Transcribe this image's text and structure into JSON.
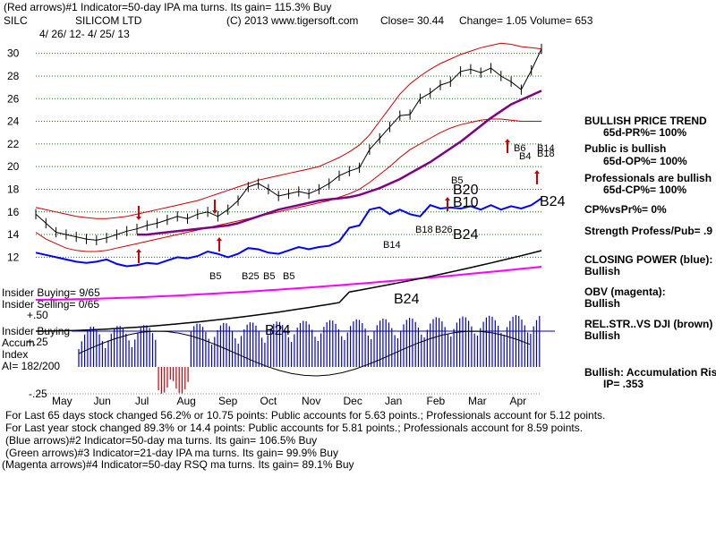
{
  "header": {
    "line1": "(Red arrows)#1 Indicator=50-day IPA ma turns. Its gain= 115.3% Buy",
    "ticker": "SILC",
    "company": "SILICOM LTD",
    "copyright": "(C) 2013 www.tigersoft.com",
    "close": "Close=  30.44",
    "change": "Change= 1.05",
    "volume": "Volume= 653",
    "date_range": "4/ 26/ 12-  4/ 25/ 13"
  },
  "right_panel": {
    "trend_title": "BULLISH PRICE TREND",
    "pr": "65d-PR%= 100%",
    "public_title": "Public is bullish",
    "op": "65d-OP%= 100%",
    "prof_title": "Professionals are bullish",
    "cp": "65d-CP%= 100%",
    "cpvspr": "CP%vsPr%=  0%",
    "strength": "Strength Profess/Pub= .9",
    "closing_power": "CLOSING POWER (blue):",
    "closing_power_val": "Bullish",
    "obv": "OBV (magenta):",
    "obv_val": "Bullish",
    "relstr": "REL.STR..VS DJI (brown)",
    "relstr_val": "Bullish",
    "accum": "Bullish: Accumulation Rising",
    "ip": "IP=   .353"
  },
  "left_labels": {
    "insider_buying": "Insider Buying= 9/65",
    "insider_selling": "Insider Selling= 0/65",
    "plus50": "+.50",
    "insider_buying2": "Insider Buying",
    "accum": "Accum",
    "plus25": "+.25",
    "index": "Index",
    "ai": "AI= 182/200",
    "minus25": "-.25"
  },
  "chart_annotations": {
    "B5_a": "B5",
    "B25": "B25",
    "B5_b": "B5",
    "B5_c": "B5",
    "B24_ai": "B24",
    "B24_lower": "B24",
    "B14": "B14",
    "B18": "B18",
    "B26": "B26",
    "B24_mid": "B24",
    "B10": "B10",
    "B20": "B20",
    "B5_feb": "B5",
    "B24_right": "B24",
    "B6": "B6",
    "B4": "B4",
    "B14_right": "B14",
    "B18_right": "B18"
  },
  "footer": {
    "line1": "For Last 65 days stock changed  56.2% or  10.75 points:  Public accounts for  5.63 points.;  Professionals account for  5.12 points.",
    "line2": "For Last year stock changed  89.3% or  14.4 points:  Public accounts for  5.81 points.;  Professionals account for  8.59 points.",
    "line3": "(Blue arrows)#2 Indicator=50-day ma turns. Its gain= 106.5% Buy",
    "line4": "(Green arrows)#3 Indicator=21-day IPA ma turns. Its gain= 99.9% Buy",
    "line5": "(Magenta arrows)#4 Indicator=50-day RSQ ma turns. Its gain= 89.1% Buy"
  },
  "colors": {
    "price": "#000000",
    "band": "#cc0000",
    "ma50": "#800080",
    "closing_power": "#0000ff",
    "obv": "#ff00ff",
    "relstr": "#8b4513",
    "accum_pos": "#0000cc",
    "accum_neg": "#cc0000",
    "grid": "#008000"
  },
  "chart_data": {
    "type": "line",
    "title": "SILC - SILICOM LTD",
    "x_labels": [
      "May",
      "Jun",
      "Jul",
      "Aug",
      "Sep",
      "Oct",
      "Nov",
      "Dec",
      "Jan",
      "Feb",
      "Mar",
      "Apr"
    ],
    "ylim": [
      11,
      31
    ],
    "y_ticks": [
      12,
      14,
      16,
      18,
      20,
      22,
      24,
      26,
      28,
      30
    ],
    "x": [
      0,
      1,
      2,
      3,
      4,
      5,
      6,
      7,
      8,
      9,
      10,
      11,
      12,
      13,
      14,
      15,
      16,
      17,
      18,
      19,
      20,
      21,
      22,
      23,
      24,
      25,
      26,
      27,
      28,
      29,
      30,
      31,
      32,
      33,
      34,
      35,
      36,
      37,
      38,
      39,
      40,
      41,
      42,
      43,
      44,
      45,
      46,
      47,
      48,
      49,
      50
    ],
    "series": [
      {
        "name": "Price",
        "values": [
          15.8,
          15.0,
          14.2,
          14.0,
          13.8,
          13.6,
          13.5,
          13.7,
          14.0,
          14.3,
          14.5,
          14.8,
          15.0,
          15.3,
          15.6,
          15.4,
          15.8,
          16.0,
          15.6,
          16.2,
          17.0,
          18.2,
          18.5,
          18.0,
          17.4,
          17.6,
          17.8,
          17.6,
          18.0,
          18.5,
          19.2,
          19.6,
          19.9,
          21.5,
          22.5,
          23.5,
          24.5,
          24.6,
          26.0,
          26.5,
          27.2,
          27.5,
          28.4,
          28.6,
          28.3,
          28.7,
          28.0,
          27.5,
          26.8,
          28.5,
          30.4
        ]
      },
      {
        "name": "Upper band",
        "values": [
          16.4,
          16.2,
          16.0,
          15.8,
          15.6,
          15.5,
          15.4,
          15.4,
          15.5,
          15.6,
          15.8,
          16.0,
          16.2,
          16.4,
          16.6,
          16.8,
          17.0,
          17.3,
          17.6,
          17.9,
          18.2,
          18.5,
          18.8,
          19.0,
          19.2,
          19.4,
          19.6,
          19.8,
          20.0,
          20.4,
          20.8,
          21.3,
          21.9,
          22.8,
          24.0,
          25.2,
          26.4,
          27.3,
          28.0,
          28.6,
          29.1,
          29.5,
          29.9,
          30.2,
          30.5,
          30.7,
          30.9,
          30.8,
          30.6,
          30.5,
          30.4
        ]
      },
      {
        "name": "Lower band",
        "values": [
          14.2,
          13.6,
          13.2,
          12.8,
          12.6,
          12.5,
          12.5,
          12.6,
          12.8,
          13.0,
          13.2,
          13.4,
          13.6,
          13.8,
          14.0,
          14.2,
          14.4,
          14.6,
          14.8,
          15.0,
          15.2,
          15.4,
          15.6,
          15.8,
          16.0,
          16.2,
          16.4,
          16.6,
          16.8,
          17.0,
          17.3,
          17.6,
          18.0,
          18.6,
          19.3,
          20.0,
          20.8,
          21.5,
          22.0,
          22.5,
          23.0,
          23.4,
          23.7,
          23.9,
          24.1,
          24.2,
          24.2,
          24.1,
          24.0,
          24.0,
          24.0
        ]
      },
      {
        "name": "50-day MA",
        "values": [
          null,
          null,
          null,
          null,
          null,
          null,
          null,
          null,
          null,
          null,
          14.0,
          14.0,
          14.1,
          14.2,
          14.3,
          14.4,
          14.5,
          14.6,
          14.7,
          14.8,
          15.0,
          15.3,
          15.6,
          15.9,
          16.2,
          16.4,
          16.6,
          16.8,
          17.0,
          17.1,
          17.2,
          17.3,
          17.5,
          17.8,
          18.1,
          18.5,
          18.9,
          19.4,
          19.9,
          20.4,
          21.0,
          21.6,
          22.2,
          22.9,
          23.6,
          24.3,
          24.9,
          25.5,
          25.9,
          26.3,
          26.7
        ]
      },
      {
        "name": "Closing Power (blue)",
        "values": [
          12.4,
          12.2,
          12.0,
          11.8,
          11.6,
          11.5,
          11.6,
          11.8,
          11.4,
          11.2,
          11.3,
          11.5,
          11.4,
          11.7,
          12.0,
          11.9,
          12.1,
          12.5,
          12.3,
          12.0,
          12.3,
          12.8,
          12.7,
          12.4,
          12.3,
          12.6,
          12.9,
          12.7,
          12.9,
          13.0,
          13.4,
          14.6,
          14.8,
          16.2,
          16.4,
          15.8,
          16.2,
          15.8,
          15.6,
          16.6,
          16.3,
          16.4,
          16.3,
          16.5,
          16.2,
          16.6,
          16.2,
          16.5,
          16.3,
          16.6,
          17.2
        ]
      }
    ],
    "annotations": [
      "B5",
      "B25",
      "B5",
      "B5",
      "B24",
      "B14",
      "B18",
      "B26",
      "B24",
      "B10",
      "B20",
      "B5",
      "B24",
      "B6",
      "B4",
      "B14",
      "B18"
    ]
  }
}
